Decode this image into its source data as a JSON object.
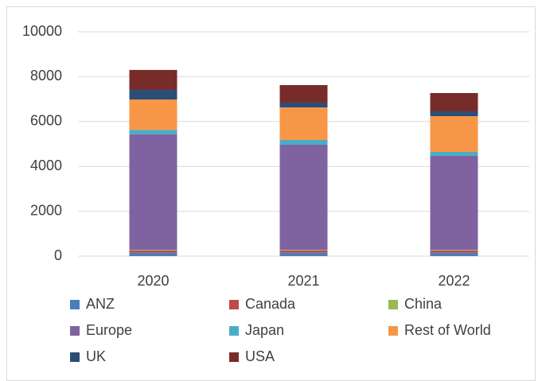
{
  "chart_data": {
    "type": "stacked-bar",
    "categories": [
      "2020",
      "2021",
      "2022"
    ],
    "series": [
      {
        "name": "ANZ",
        "color": "#4a7ebb",
        "values": [
          150,
          150,
          150
        ]
      },
      {
        "name": "Canada",
        "color": "#be4b48",
        "values": [
          100,
          100,
          100
        ]
      },
      {
        "name": "China",
        "color": "#98b954",
        "values": [
          30,
          30,
          30
        ]
      },
      {
        "name": "Europe",
        "color": "#7f63a1",
        "values": [
          5150,
          4685,
          4190
        ]
      },
      {
        "name": "Japan",
        "color": "#4bacc6",
        "values": [
          200,
          215,
          175
        ]
      },
      {
        "name": "Rest of World",
        "color": "#f79646",
        "values": [
          1350,
          1450,
          1595
        ]
      },
      {
        "name": "UK",
        "color": "#2c4d75",
        "values": [
          430,
          215,
          215
        ]
      },
      {
        "name": "USA",
        "color": "#772c2a",
        "values": [
          890,
          780,
          815
        ]
      }
    ],
    "ylim": [
      0,
      10000
    ],
    "yticks": [
      0,
      2000,
      4000,
      6000,
      8000,
      10000
    ],
    "grid": true
  }
}
